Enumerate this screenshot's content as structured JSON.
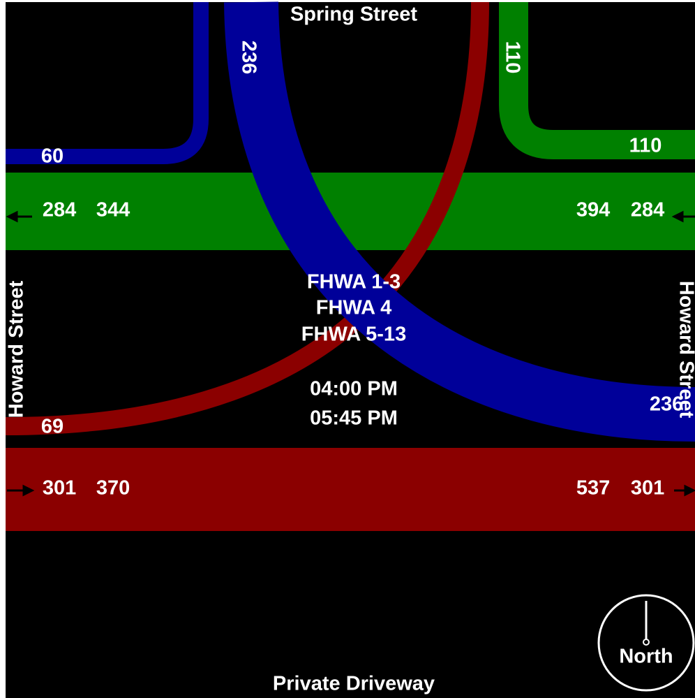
{
  "streets": {
    "north": "Spring Street",
    "south": "Private Driveway",
    "west": "Howard Street",
    "east": "Howard Street"
  },
  "legend": [
    "FHWA 1-3",
    "FHWA 4",
    "FHWA 5-13"
  ],
  "time_period": [
    "04:00 PM",
    "05:45 PM"
  ],
  "volume_labels": [
    60,
    236,
    110,
    110,
    284,
    344,
    394,
    284,
    69,
    236,
    301,
    370,
    537,
    301
  ],
  "compass": "North"
}
